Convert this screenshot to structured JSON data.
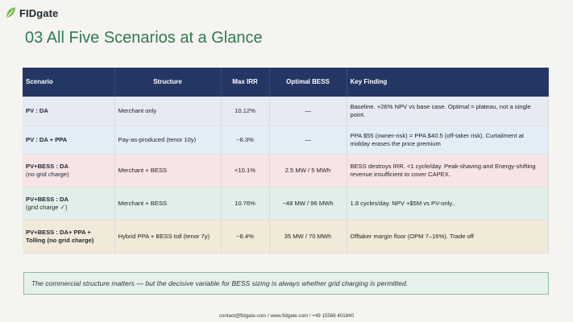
{
  "brand": {
    "name": "FIDgate",
    "icon": "leaf-icon",
    "accent": "#2f7a4f"
  },
  "title": "03 All Five Scenarios at a Glance",
  "table": {
    "headers": [
      "Scenario",
      "Structure",
      "Max IRR",
      "Optimal BESS",
      "Key Finding"
    ],
    "rows": [
      {
        "scenario": "PV : DA",
        "scenario_sub": "",
        "structure": "Merchant only",
        "max_irr": "10.12%",
        "optimal_bess": "—",
        "key_finding": "Baseline. +26% NPV vs base case. Optimal = plateau, not a single point."
      },
      {
        "scenario": "PV : DA + PPA",
        "scenario_sub": "",
        "structure": "Pay-as-produced (tenor 10y)",
        "max_irr": "~8.3%",
        "optimal_bess": "—",
        "key_finding": "PPA $55 (owner-risk) = PPA $40.5 (off-taker risk). Curtailment at midday erases the price premium"
      },
      {
        "scenario": "PV+BESS : DA",
        "scenario_sub": "(no grid charge)",
        "structure": "Merchant + BESS",
        "max_irr": "<10.1%",
        "optimal_bess": "2.5 MW / 5 MWh",
        "key_finding": "BESS destroys IRR. <1 cycle/day. Peak-shaving and Energy-shifting revenue insufficient to cover CAPEX."
      },
      {
        "scenario": "PV+BESS : DA",
        "scenario_sub": "(grid charge ✓)",
        "structure": "Merchant + BESS",
        "max_irr": "10.76%",
        "optimal_bess": "~48 MW / 96 MWh",
        "key_finding": "1.8 cycles/day. NPV +$5M vs PV-only.."
      },
      {
        "scenario": "PV+BESS : DA+ PPA + Tolling",
        "scenario_sub": "(no grid charge)",
        "structure": "Hybrid PPA + BESS toll (tenor 7y)",
        "max_irr": "~8.4%",
        "optimal_bess": "35 MW / 70 MWh",
        "key_finding": "Offtaker margin floor (OPM 7–16%). Trade off"
      }
    ]
  },
  "note": "The commercial structure matters — but the decisive variable for BESS sizing is always whether grid charging is permitted.",
  "footer": "contact@fidgate.com / www.fidgate.com / +49 15566 401840"
}
